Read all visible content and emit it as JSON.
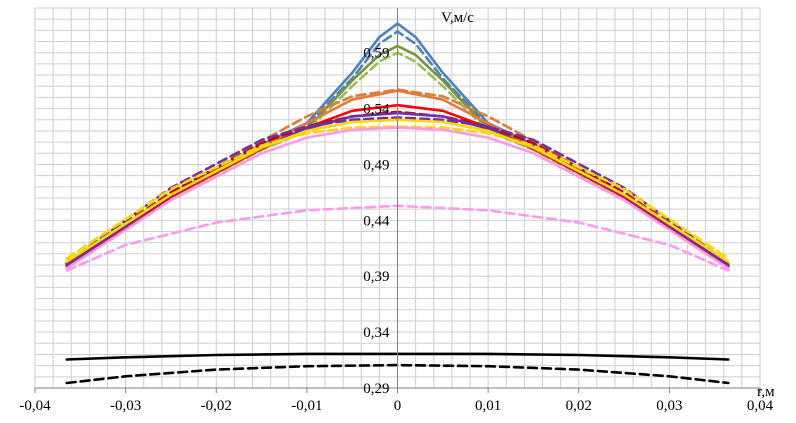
{
  "chart_data": {
    "type": "line",
    "xlabel": "r,м",
    "ylabel": "V,м/с",
    "xlim": [
      -0.04,
      0.04
    ],
    "ylim": [
      0.29,
      0.63
    ],
    "x_ticks": [
      "-0,04",
      "-0,03",
      "-0,02",
      "-0,01",
      "0",
      "0,01",
      "0,02",
      "0,03",
      "0,04"
    ],
    "y_ticks": [
      "0,29",
      "0,34",
      "0,39",
      "0,44",
      "0,49",
      "0,54",
      "0,59"
    ],
    "x_tick_values": [
      -0.04,
      -0.03,
      -0.02,
      -0.01,
      0,
      0.01,
      0.02,
      0.03,
      0.04
    ],
    "y_tick_values": [
      0.29,
      0.34,
      0.39,
      0.44,
      0.49,
      0.54,
      0.59
    ],
    "grid": true,
    "legend": "none",
    "series": [
      {
        "color": "#4f81bd",
        "dash": false,
        "x": [
          -0.0365,
          -0.025,
          -0.015,
          -0.01,
          -0.005,
          -0.002,
          0,
          0.002,
          0.005,
          0.01,
          0.015,
          0.025,
          0.0365
        ],
        "values": [
          0.402,
          0.463,
          0.508,
          0.527,
          0.572,
          0.604,
          0.616,
          0.604,
          0.572,
          0.527,
          0.508,
          0.463,
          0.402
        ]
      },
      {
        "color": "#4f81bd",
        "dash": true,
        "x": [
          -0.0365,
          -0.025,
          -0.015,
          -0.01,
          -0.005,
          -0.002,
          0,
          0.002,
          0.005,
          0.01,
          0.015,
          0.025,
          0.0365
        ],
        "values": [
          0.401,
          0.462,
          0.507,
          0.525,
          0.567,
          0.598,
          0.609,
          0.598,
          0.567,
          0.525,
          0.507,
          0.462,
          0.401
        ]
      },
      {
        "color": "#77933c",
        "dash": false,
        "x": [
          -0.0365,
          -0.025,
          -0.015,
          -0.01,
          -0.005,
          -0.002,
          0,
          0.002,
          0.005,
          0.01,
          0.015,
          0.025,
          0.0365
        ],
        "values": [
          0.401,
          0.461,
          0.504,
          0.522,
          0.565,
          0.588,
          0.596,
          0.588,
          0.565,
          0.522,
          0.504,
          0.461,
          0.401
        ]
      },
      {
        "color": "#9bbb59",
        "dash": true,
        "x": [
          -0.0365,
          -0.025,
          -0.015,
          -0.01,
          -0.005,
          -0.002,
          0,
          0.002,
          0.005,
          0.01,
          0.015,
          0.025,
          0.0365
        ],
        "values": [
          0.4,
          0.46,
          0.503,
          0.52,
          0.56,
          0.582,
          0.59,
          0.582,
          0.56,
          0.52,
          0.503,
          0.46,
          0.4
        ]
      },
      {
        "color": "#e07b39",
        "dash": false,
        "x": [
          -0.0365,
          -0.025,
          -0.015,
          -0.01,
          -0.005,
          0,
          0.005,
          0.01,
          0.015,
          0.025,
          0.0365
        ],
        "values": [
          0.4,
          0.461,
          0.505,
          0.527,
          0.548,
          0.556,
          0.548,
          0.527,
          0.505,
          0.461,
          0.4
        ]
      },
      {
        "color": "#e07b39",
        "dash": true,
        "x": [
          -0.0365,
          -0.025,
          -0.015,
          -0.01,
          -0.005,
          0,
          0.005,
          0.01,
          0.015,
          0.025,
          0.0365
        ],
        "values": [
          0.401,
          0.463,
          0.511,
          0.533,
          0.551,
          0.557,
          0.551,
          0.533,
          0.511,
          0.463,
          0.401
        ]
      },
      {
        "color": "#ff0000",
        "dash": false,
        "x": [
          -0.0365,
          -0.025,
          -0.015,
          -0.01,
          -0.005,
          0,
          0.005,
          0.01,
          0.015,
          0.025,
          0.0365
        ],
        "values": [
          0.399,
          0.461,
          0.504,
          0.523,
          0.538,
          0.543,
          0.538,
          0.523,
          0.504,
          0.461,
          0.399
        ]
      },
      {
        "color": "#c00000",
        "dash": true,
        "x": [
          -0.0365,
          -0.025,
          -0.015,
          -0.01,
          -0.005,
          0,
          0.005,
          0.01,
          0.015,
          0.025,
          0.0365
        ],
        "values": [
          0.401,
          0.465,
          0.509,
          0.524,
          0.533,
          0.537,
          0.533,
          0.524,
          0.509,
          0.465,
          0.401
        ]
      },
      {
        "color": "#7030a0",
        "dash": false,
        "x": [
          -0.0365,
          -0.025,
          -0.015,
          -0.01,
          -0.005,
          0,
          0.005,
          0.01,
          0.015,
          0.025,
          0.0365
        ],
        "values": [
          0.4,
          0.462,
          0.505,
          0.522,
          0.533,
          0.536,
          0.533,
          0.522,
          0.505,
          0.462,
          0.4
        ]
      },
      {
        "color": "#7030a0",
        "dash": true,
        "x": [
          -0.0365,
          -0.025,
          -0.015,
          -0.01,
          -0.005,
          0,
          0.005,
          0.01,
          0.015,
          0.025,
          0.0365
        ],
        "values": [
          0.402,
          0.469,
          0.512,
          0.524,
          0.53,
          0.532,
          0.53,
          0.524,
          0.512,
          0.469,
          0.402
        ]
      },
      {
        "color": "#ffd700",
        "dash": false,
        "x": [
          -0.0365,
          -0.025,
          -0.015,
          -0.01,
          -0.005,
          0,
          0.005,
          0.01,
          0.015,
          0.025,
          0.0365
        ],
        "values": [
          0.403,
          0.463,
          0.505,
          0.52,
          0.528,
          0.53,
          0.528,
          0.52,
          0.505,
          0.463,
          0.403
        ]
      },
      {
        "color": "#ffd700",
        "dash": true,
        "x": [
          -0.0365,
          -0.025,
          -0.015,
          -0.01,
          -0.005,
          0,
          0.005,
          0.01,
          0.015,
          0.025,
          0.0365
        ],
        "values": [
          0.406,
          0.468,
          0.507,
          0.518,
          0.523,
          0.524,
          0.523,
          0.518,
          0.507,
          0.468,
          0.406
        ]
      },
      {
        "color": "#ff99ee",
        "dash": false,
        "x": [
          -0.0365,
          -0.025,
          -0.015,
          -0.01,
          -0.005,
          0,
          0.005,
          0.01,
          0.015,
          0.025,
          0.0365
        ],
        "values": [
          0.397,
          0.458,
          0.5,
          0.514,
          0.521,
          0.523,
          0.521,
          0.514,
          0.5,
          0.458,
          0.397
        ]
      },
      {
        "color": "#ff99ee",
        "dash": true,
        "x": [
          -0.0365,
          -0.03,
          -0.02,
          -0.01,
          0,
          0.01,
          0.02,
          0.03,
          0.0365
        ],
        "values": [
          0.395,
          0.418,
          0.438,
          0.449,
          0.453,
          0.449,
          0.438,
          0.418,
          0.395
        ]
      },
      {
        "color": "#000000",
        "dash": false,
        "x": [
          -0.0365,
          -0.03,
          -0.02,
          -0.01,
          0,
          0.01,
          0.02,
          0.03,
          0.0365
        ],
        "values": [
          0.3155,
          0.3175,
          0.3195,
          0.3205,
          0.3205,
          0.3205,
          0.3195,
          0.3175,
          0.3155
        ]
      },
      {
        "color": "#000000",
        "dash": true,
        "x": [
          -0.0365,
          -0.03,
          -0.02,
          -0.01,
          0,
          0.01,
          0.02,
          0.03,
          0.0365
        ],
        "values": [
          0.2945,
          0.3005,
          0.3065,
          0.3095,
          0.3105,
          0.3095,
          0.3065,
          0.3005,
          0.2945
        ]
      }
    ]
  }
}
